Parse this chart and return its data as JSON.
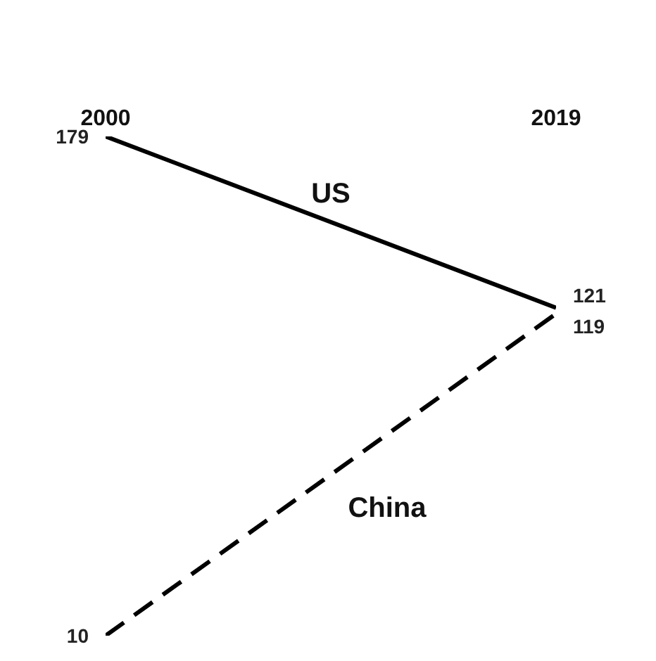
{
  "chart_data": {
    "type": "line",
    "categories": [
      "2000",
      "2019"
    ],
    "series": [
      {
        "name": "US",
        "color": "#000000",
        "values": [
          179,
          121
        ],
        "line_style": "solid"
      },
      {
        "name": "China",
        "color": "#000000",
        "values": [
          10,
          119
        ],
        "line_style": "dashed"
      }
    ],
    "data_labels": true,
    "tick_labels": "x",
    "marker": "none"
  }
}
